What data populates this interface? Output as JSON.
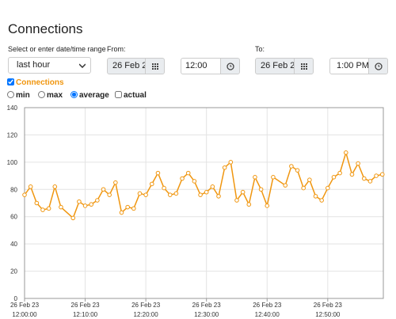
{
  "header": {
    "title": "Connections"
  },
  "controls": {
    "range_label": "Select or enter date/time range",
    "range_select": "last hour",
    "from_label": "From:",
    "from_date": "26 Feb 2",
    "from_time": "12:00 PM",
    "to_label": "To:",
    "to_date": "26 Feb 2",
    "to_time": "1:00 PM",
    "series_toggle": "Connections",
    "options": [
      "min",
      "max",
      "average",
      "actual"
    ]
  },
  "chart_data": {
    "type": "line",
    "x": [
      "12:00:00",
      "12:01:00",
      "12:02:00",
      "12:03:00",
      "12:04:00",
      "12:05:00",
      "12:06:00",
      "12:08:00",
      "12:09:00",
      "12:10:00",
      "12:11:00",
      "12:12:00",
      "12:13:00",
      "12:14:00",
      "12:15:00",
      "12:16:00",
      "12:17:00",
      "12:18:00",
      "12:19:00",
      "12:20:00",
      "12:21:00",
      "12:22:00",
      "12:23:00",
      "12:24:00",
      "12:25:00",
      "12:26:00",
      "12:27:00",
      "12:28:00",
      "12:29:00",
      "12:30:00",
      "12:31:00",
      "12:32:00",
      "12:33:00",
      "12:34:00",
      "12:35:00",
      "12:36:00",
      "12:37:00",
      "12:38:00",
      "12:39:00",
      "12:40:00",
      "12:41:00",
      "12:43:00",
      "12:44:00",
      "12:45:00",
      "12:46:00",
      "12:47:00",
      "12:48:00",
      "12:49:00",
      "12:50:00",
      "12:51:00",
      "12:52:00",
      "12:53:00",
      "12:54:00",
      "12:55:00",
      "12:56:00",
      "12:57:00",
      "12:58:00",
      "12:59:00"
    ],
    "series": [
      {
        "name": "Connections",
        "color": "#f0960f",
        "values": [
          76,
          82,
          70,
          65,
          66,
          82,
          67,
          59,
          71,
          68,
          69,
          72,
          80,
          76,
          85,
          63,
          67,
          66,
          77,
          76,
          84,
          92,
          81,
          76,
          77,
          88,
          92,
          86,
          76,
          78,
          82,
          75,
          96,
          100,
          72,
          78,
          69,
          89,
          80,
          68,
          89,
          83,
          97,
          94,
          81,
          87,
          75,
          72,
          81,
          89,
          92,
          107,
          91,
          99,
          88,
          86,
          90,
          91
        ]
      }
    ],
    "xlim": [
      "12:00:00",
      "12:59:10"
    ],
    "xticks": [
      {
        "value": "12:00:00",
        "label": "26 Feb 23 12:00:00"
      },
      {
        "value": "12:10:00",
        "label": "26 Feb 23 12:10:00"
      },
      {
        "value": "12:20:00",
        "label": "26 Feb 23 12:20:00"
      },
      {
        "value": "12:30:00",
        "label": "26 Feb 23 12:30:00"
      },
      {
        "value": "12:40:00",
        "label": "26 Feb 23 12:40:00"
      },
      {
        "value": "12:50:00",
        "label": "26 Feb 23 12:50:00"
      }
    ],
    "ylim": [
      0,
      140
    ],
    "yticks": [
      0,
      20,
      40,
      60,
      80,
      100,
      120,
      140
    ],
    "grid": true
  }
}
